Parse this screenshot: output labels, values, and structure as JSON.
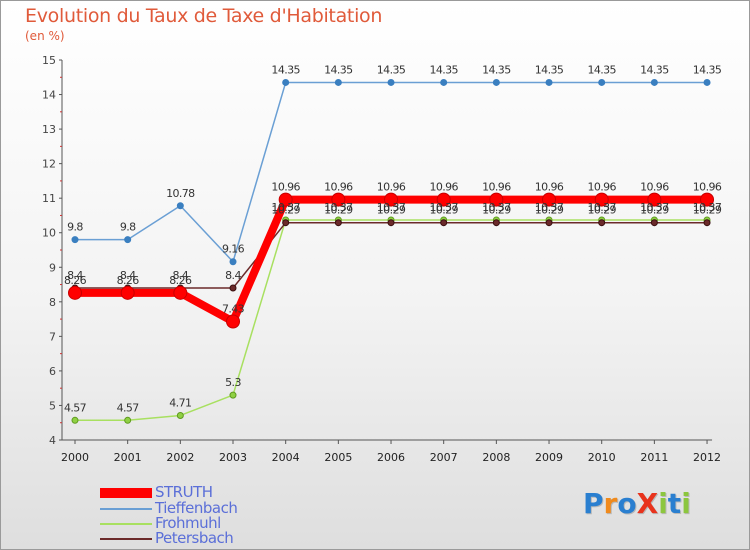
{
  "header": {
    "title": "Evolution du Taux de Taxe d'Habitation",
    "subtitle": "(en %)"
  },
  "logo": {
    "text": "ProXiti",
    "letters": [
      "P",
      "r",
      "o",
      "X",
      "i",
      "t",
      "i"
    ],
    "colors": [
      "#2a7fd0",
      "#f08a1c",
      "#2a7fd0",
      "#e8331c",
      "#8cc63e",
      "#2a7fd0",
      "#8cc63e"
    ]
  },
  "chart_data": {
    "type": "line",
    "title": "Evolution du Taux de Taxe d'Habitation",
    "ylabel": "(en %)",
    "xlabel": "",
    "ylim": [
      4,
      15
    ],
    "yticks": [
      4,
      5,
      6,
      7,
      8,
      9,
      10,
      11,
      12,
      13,
      14,
      15
    ],
    "categories": [
      "2000",
      "2001",
      "2002",
      "2003",
      "2004",
      "2005",
      "2006",
      "2007",
      "2008",
      "2009",
      "2010",
      "2011",
      "2012"
    ],
    "series": [
      {
        "name": "STRUTH",
        "color": "#ff0000",
        "values": [
          8.26,
          8.26,
          8.26,
          7.43,
          10.96,
          10.96,
          10.96,
          10.96,
          10.96,
          10.96,
          10.96,
          10.96,
          10.96
        ],
        "labels": [
          "8.26",
          "8.26",
          "8.26",
          "7.43",
          "10.96",
          "10.96",
          "10.96",
          "10.96",
          "10.96",
          "10.96",
          "10.96",
          "10.96",
          "10.96"
        ]
      },
      {
        "name": "Tieffenbach",
        "color": "#6a9fd4",
        "values": [
          9.8,
          9.8,
          10.78,
          9.16,
          14.35,
          14.35,
          14.35,
          14.35,
          14.35,
          14.35,
          14.35,
          14.35,
          14.35
        ],
        "labels": [
          "9.8",
          "9.8",
          "10.78",
          "9.16",
          "14.35",
          "14.35",
          "14.35",
          "14.35",
          "14.35",
          "14.35",
          "14.35",
          "14.35",
          "14.35"
        ]
      },
      {
        "name": "Frohmuhl",
        "color": "#a8e060",
        "values": [
          4.57,
          4.57,
          4.71,
          5.3,
          10.37,
          10.37,
          10.37,
          10.37,
          10.37,
          10.37,
          10.37,
          10.37,
          10.37
        ],
        "labels": [
          "4.57",
          "4.57",
          "4.71",
          "5.3",
          "10.37",
          "10.37",
          "10.37",
          "10.37",
          "10.37",
          "10.37",
          "10.37",
          "10.37",
          "10.37"
        ]
      },
      {
        "name": "Petersbach",
        "color": "#6b2a2a",
        "values": [
          8.4,
          8.4,
          8.4,
          8.4,
          10.29,
          10.29,
          10.29,
          10.29,
          10.29,
          10.29,
          10.29,
          10.29,
          10.29
        ],
        "labels": [
          "8.4",
          "8.4",
          "8.4",
          "8.4",
          "10.29",
          "10.29",
          "10.29",
          "10.29",
          "10.29",
          "10.29",
          "10.29",
          "10.29",
          "10.29"
        ]
      }
    ],
    "legend": {
      "position": "bottom-left",
      "entries": [
        "STRUTH",
        "Tieffenbach",
        "Frohmuhl",
        "Petersbach"
      ]
    }
  }
}
